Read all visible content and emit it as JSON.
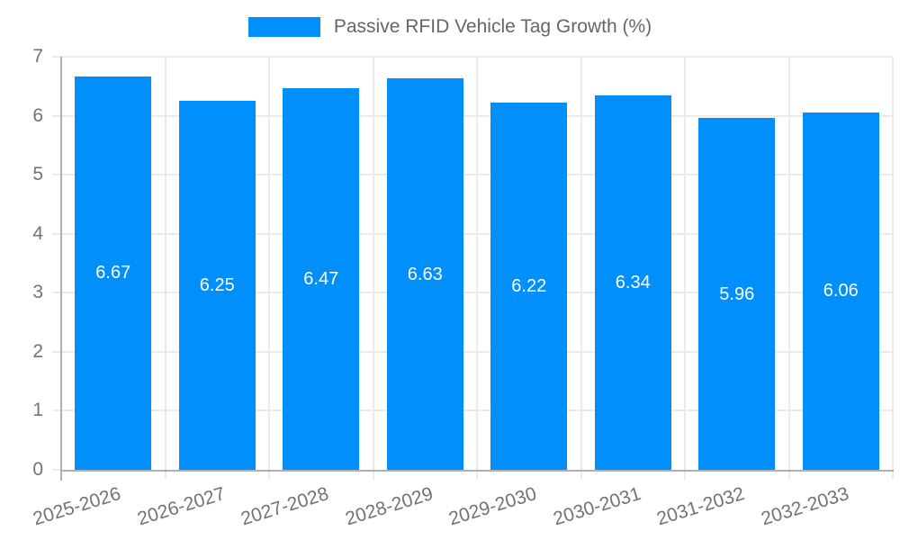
{
  "chart_data": {
    "type": "bar",
    "title": "Passive RFID Vehicle Tag Growth (%)",
    "legend": {
      "label": "Passive RFID Vehicle Tag Growth (%)",
      "position": "top"
    },
    "categories": [
      "2025-2026",
      "2026-2027",
      "2027-2028",
      "2028-2029",
      "2029-2030",
      "2030-2031",
      "2031-2032",
      "2032-2033"
    ],
    "values": [
      6.67,
      6.25,
      6.47,
      6.63,
      6.22,
      6.34,
      5.96,
      6.06
    ],
    "data_labels": [
      "6.67",
      "6.25",
      "6.47",
      "6.63",
      "6.22",
      "6.34",
      "5.96",
      "6.06"
    ],
    "xlabel": "",
    "ylabel": "",
    "ylim": [
      0,
      7
    ],
    "ytick_step": 1,
    "ytick_labels": [
      "0",
      "1",
      "2",
      "3",
      "4",
      "5",
      "6",
      "7"
    ],
    "grid": true,
    "colors": {
      "bar": "#008FFB",
      "gridline": "#ebebeb",
      "axis_line": "#b0b0b0",
      "tick_text": "#737373",
      "legend_text": "#666666",
      "data_label_text": "#ffffff",
      "background": "#ffffff"
    }
  }
}
